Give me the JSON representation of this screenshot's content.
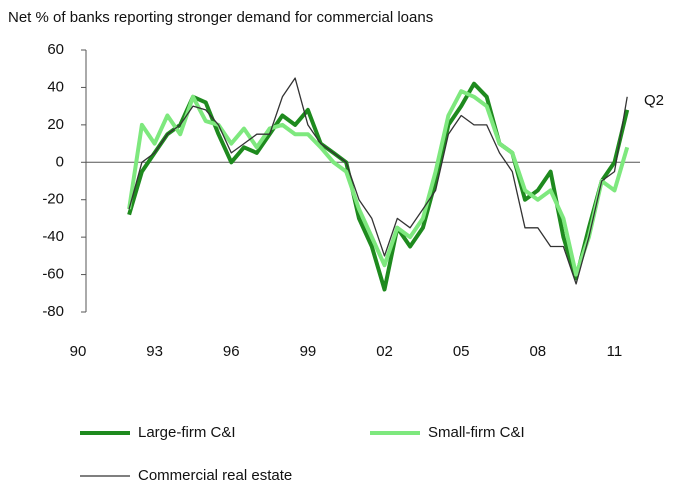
{
  "chart_data": {
    "type": "line",
    "title": "Net % of banks reporting stronger demand for commercial loans",
    "annotation": "Q2",
    "x": [
      1992.0,
      1992.5,
      1993.0,
      1993.5,
      1994.0,
      1994.5,
      1995.0,
      1995.5,
      1996.0,
      1996.5,
      1997.0,
      1997.5,
      1998.0,
      1998.5,
      1999.0,
      1999.5,
      2000.0,
      2000.5,
      2001.0,
      2001.5,
      2002.0,
      2002.5,
      2003.0,
      2003.5,
      2004.0,
      2004.5,
      2005.0,
      2005.5,
      2006.0,
      2006.5,
      2007.0,
      2007.5,
      2008.0,
      2008.5,
      2009.0,
      2009.5,
      2010.0,
      2010.5,
      2011.0,
      2011.5
    ],
    "series": [
      {
        "name": "Large-firm C&I",
        "color": "#1e8a1e",
        "width": 4,
        "values": [
          -28,
          -5,
          5,
          15,
          20,
          35,
          32,
          15,
          0,
          8,
          5,
          15,
          25,
          20,
          28,
          10,
          5,
          0,
          -30,
          -45,
          -68,
          -35,
          -45,
          -35,
          -10,
          20,
          30,
          42,
          35,
          10,
          5,
          -20,
          -15,
          -5,
          -40,
          -62,
          -35,
          -10,
          0,
          28
        ]
      },
      {
        "name": "Small-firm C&I",
        "color": "#7ee87e",
        "width": 4,
        "values": [
          -25,
          20,
          10,
          25,
          15,
          35,
          22,
          20,
          10,
          18,
          8,
          18,
          20,
          15,
          15,
          8,
          0,
          -5,
          -25,
          -40,
          -55,
          -35,
          -40,
          -30,
          -5,
          25,
          38,
          35,
          30,
          10,
          5,
          -15,
          -20,
          -15,
          -30,
          -60,
          -40,
          -10,
          -15,
          8
        ]
      },
      {
        "name": "Commercial real estate",
        "color": "#333333",
        "width": 1.3,
        "values": [
          -25,
          0,
          5,
          15,
          20,
          30,
          28,
          20,
          5,
          10,
          15,
          15,
          35,
          45,
          20,
          10,
          5,
          0,
          -20,
          -30,
          -50,
          -30,
          -35,
          -25,
          -15,
          15,
          25,
          20,
          20,
          5,
          -5,
          -35,
          -35,
          -45,
          -45,
          -65,
          -40,
          -10,
          -5,
          35
        ]
      }
    ],
    "xlim": [
      1990,
      2012
    ],
    "xticks": [
      {
        "value": 1990,
        "label": "90"
      },
      {
        "value": 1993,
        "label": "93"
      },
      {
        "value": 1996,
        "label": "96"
      },
      {
        "value": 1999,
        "label": "99"
      },
      {
        "value": 2002,
        "label": "02"
      },
      {
        "value": 2005,
        "label": "05"
      },
      {
        "value": 2008,
        "label": "08"
      },
      {
        "value": 2011,
        "label": "11"
      }
    ],
    "ylim": [
      -80,
      60
    ],
    "yticks": [
      -80,
      -60,
      -40,
      -20,
      0,
      20,
      40,
      60
    ],
    "grid": false
  }
}
